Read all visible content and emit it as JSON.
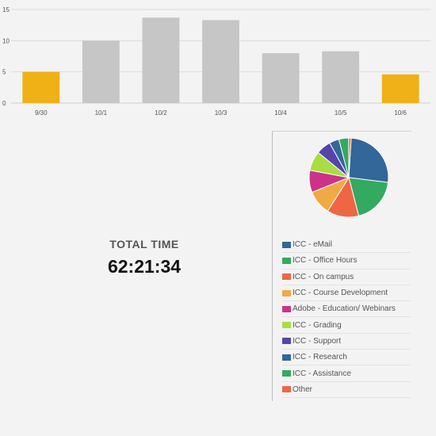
{
  "chart_data": [
    {
      "type": "bar",
      "categories": [
        "9/30",
        "10/1",
        "10/2",
        "10/3",
        "10/4",
        "10/5",
        "10/6"
      ],
      "values": [
        5.0,
        10.0,
        13.7,
        13.3,
        8.0,
        8.3,
        4.6
      ],
      "highlight": [
        true,
        false,
        false,
        false,
        false,
        false,
        true
      ],
      "colors": {
        "highlight": "#f0b116",
        "normal": "#c6c6c6"
      },
      "ylim": [
        0,
        15
      ],
      "yticks": [
        "0",
        "5",
        "10",
        "15"
      ],
      "grid": true,
      "title": "",
      "xlabel": "",
      "ylabel": ""
    },
    {
      "type": "pie",
      "labels": [
        "ICC - eMail",
        "ICC - Office Hours",
        "ICC - On campus",
        "ICC - Course Development",
        "Adobe - Education/ Webinars",
        "ICC - Grading",
        "ICC - Support",
        "ICC - Research",
        "ICC - Assistance",
        "Other"
      ],
      "values": [
        26,
        19,
        13,
        10,
        9,
        8,
        6,
        4,
        4,
        1
      ],
      "colors": [
        "#336699",
        "#33aa60",
        "#ee6644",
        "#f0aa44",
        "#cc3388",
        "#aadd44",
        "#5544aa",
        "#336699",
        "#33aa60",
        "#ee6644"
      ],
      "legend": "below"
    }
  ],
  "summary": {
    "total_label": "TOTAL TIME",
    "total_value": "62:21:34"
  }
}
